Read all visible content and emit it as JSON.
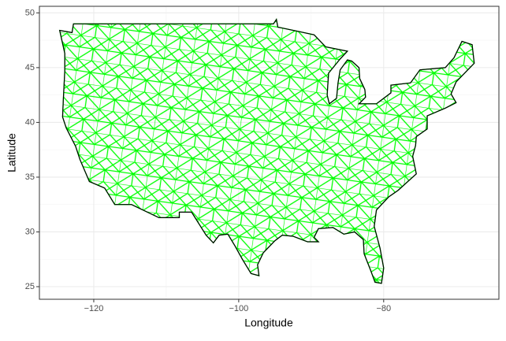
{
  "chart_data": {
    "type": "map",
    "x_label": "Longitude",
    "y_label": "Latitude",
    "xlim": [
      -127.5,
      -64.1
    ],
    "ylim": [
      23.85,
      50.6
    ],
    "xticks": [
      {
        "value": -120,
        "label": "−120"
      },
      {
        "value": -100,
        "label": "−100"
      },
      {
        "value": -80,
        "label": "−80"
      }
    ],
    "yticks": [
      25,
      30,
      35,
      40,
      45,
      50
    ],
    "grid": true,
    "outline_color": "#000000",
    "mesh_color": "#00ff00",
    "outline": {
      "lon": [
        -124.7,
        -123,
        -122.8,
        -95.2,
        -94.8,
        -94.6,
        -91,
        -89.6,
        -88,
        -85,
        -86,
        -87.6,
        -87.8,
        -87.5,
        -86.5,
        -86.3,
        -86,
        -85,
        -84.4,
        -83.4,
        -83.3,
        -82.6,
        -82.5,
        -83.4,
        -81,
        -79,
        -79,
        -76.3,
        -75,
        -71.5,
        -70.3,
        -69.2,
        -67.8,
        -67.5,
        -70,
        -70.7,
        -70,
        -71.5,
        -74,
        -74,
        -75.5,
        -75.6,
        -76,
        -75.5,
        -76.5,
        -78,
        -79.3,
        -81,
        -81.3,
        -80.5,
        -80,
        -80.3,
        -81.2,
        -81.8,
        -82.7,
        -82.8,
        -84,
        -85.5,
        -87,
        -89,
        -89.6,
        -89,
        -90.5,
        -92.5,
        -94,
        -95,
        -96.6,
        -97.4,
        -97.2,
        -98.3,
        -99.5,
        -100.5,
        -101.5,
        -102.7,
        -103.5,
        -104.5,
        -106.5,
        -108.2,
        -108.2,
        -111,
        -114.8,
        -117.1,
        -118.5,
        -120.6,
        -121.9,
        -122.5,
        -123.8,
        -124.3,
        -124.2,
        -124,
        -124,
        -124.7
      ],
      "lat": [
        48.4,
        48.2,
        49,
        49,
        49.4,
        48.7,
        48.2,
        48,
        46.9,
        46.5,
        45.8,
        44.5,
        42.5,
        41.7,
        42.2,
        43.6,
        44.8,
        45.7,
        45.6,
        45,
        44,
        43,
        42.3,
        41.7,
        41.7,
        42.7,
        43.4,
        43.6,
        44.8,
        45,
        45.9,
        47.4,
        47.1,
        45.4,
        43.7,
        42.6,
        41.8,
        41.3,
        40.6,
        39.4,
        38.7,
        37.9,
        36.9,
        35.3,
        34.7,
        33.8,
        33.2,
        32,
        30.5,
        28.5,
        26.7,
        25.3,
        25.4,
        26.5,
        28,
        29.3,
        30,
        29.8,
        30.4,
        30.3,
        29.5,
        29.1,
        29.1,
        29.6,
        29.7,
        29.2,
        28.1,
        27,
        26,
        26.2,
        27.5,
        28.7,
        29.8,
        29.7,
        29,
        29.7,
        31.8,
        31.8,
        31.3,
        31.3,
        32.5,
        32.5,
        34,
        34.6,
        36.6,
        37.8,
        39.5,
        40.5,
        42,
        44.7,
        46.3,
        48.4
      ]
    }
  }
}
